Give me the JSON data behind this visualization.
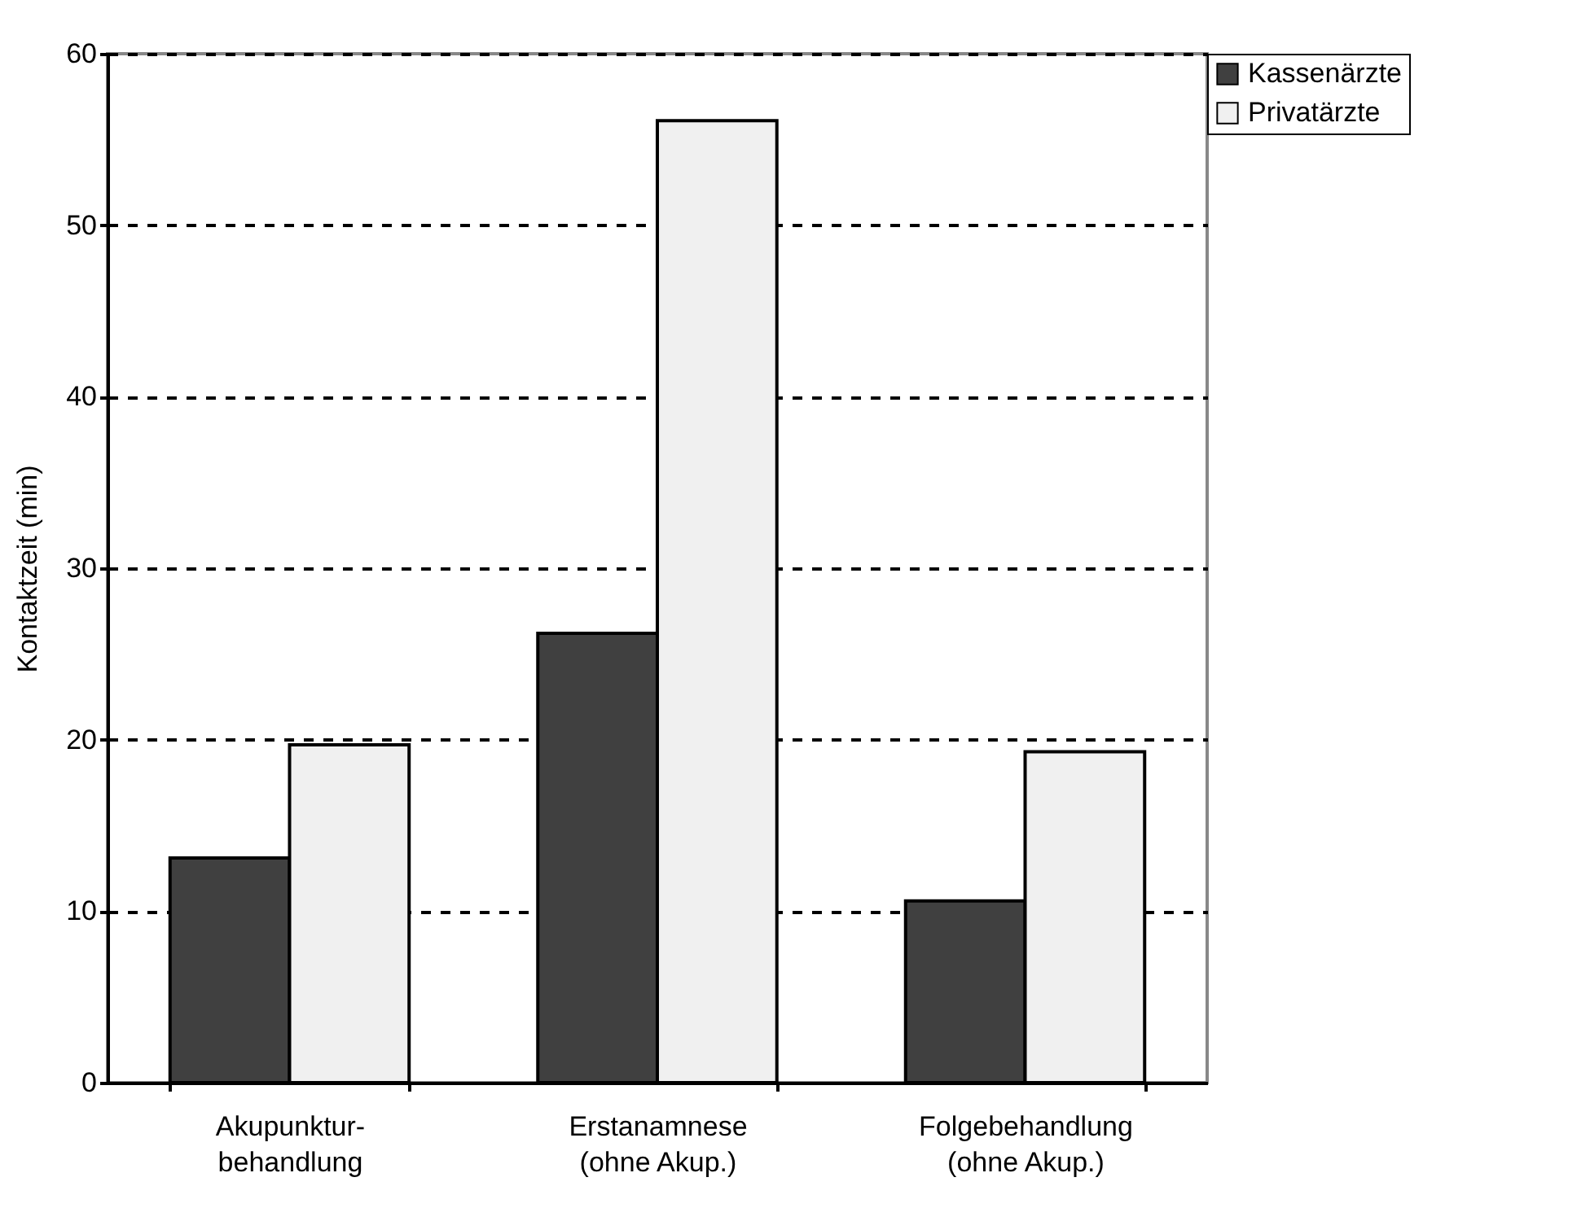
{
  "chart_data": {
    "type": "bar",
    "ylabel": "Kontaktzeit (min)",
    "categories": [
      "Akupunktur-\nbehandlung",
      "Erstanamnese\n(ohne Akup.)",
      "Folgebehandlung\n(ohne Akup.)"
    ],
    "series": [
      {
        "name": "Kassenärzte",
        "color": "#404040",
        "values": [
          13.1,
          26.2,
          10.6
        ]
      },
      {
        "name": "Privatärzte",
        "color": "#f0f0f0",
        "values": [
          19.7,
          56.1,
          19.3
        ]
      }
    ],
    "ylim": [
      0,
      60
    ],
    "yticks": [
      0,
      10,
      20,
      30,
      40,
      50,
      60
    ],
    "grid": "y",
    "legend": "right"
  }
}
